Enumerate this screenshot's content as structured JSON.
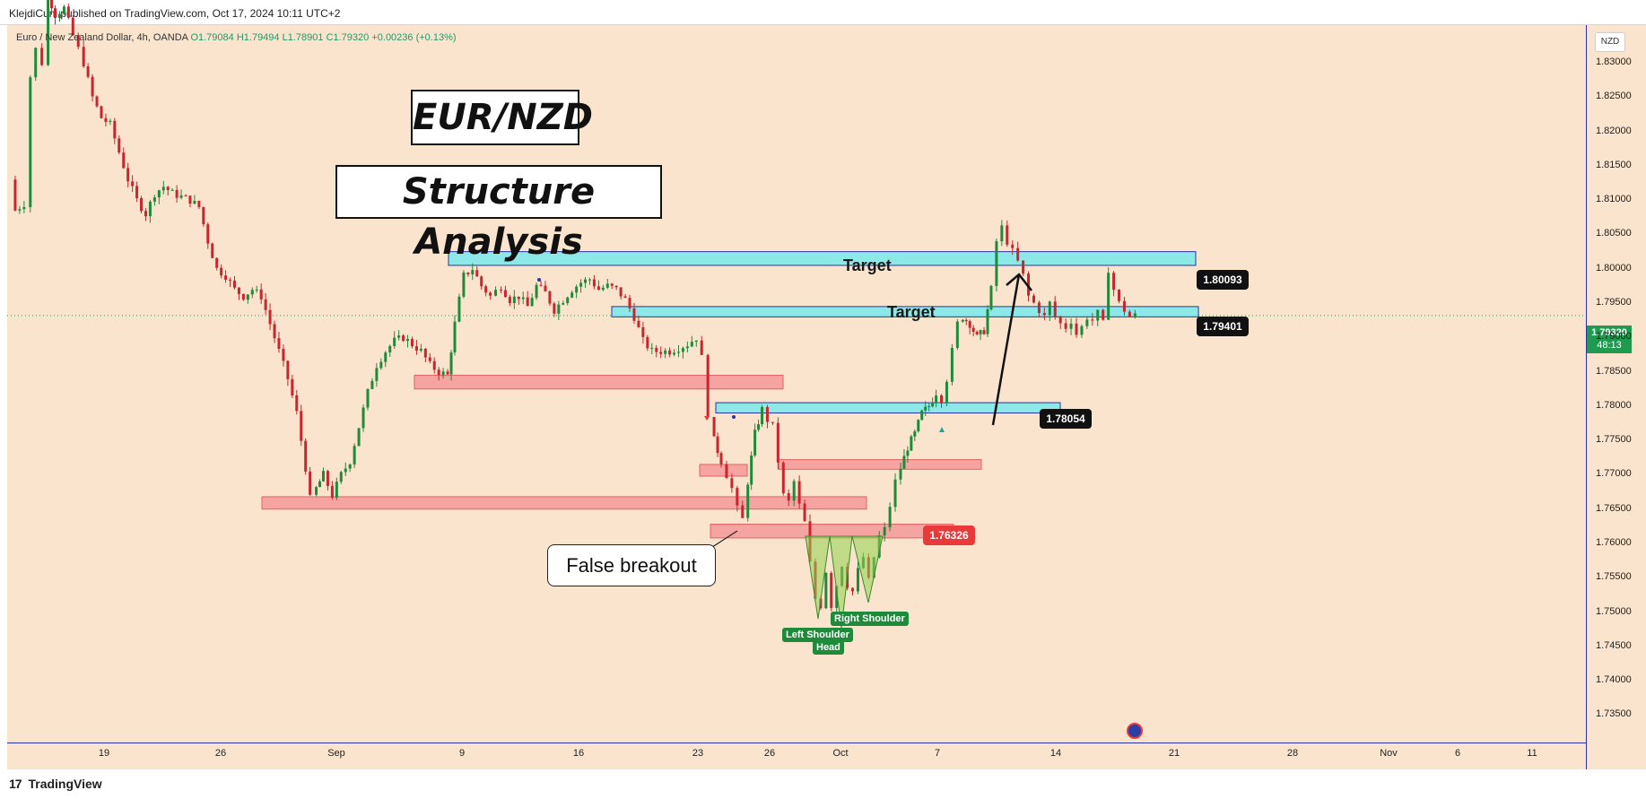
{
  "header": {
    "published": "KlejdiCuni published on TradingView.com, Oct 17, 2024 10:11 UTC+2"
  },
  "legend": {
    "symbol": "Euro / New Zealand Dollar, 4h, OANDA",
    "open": "O1.79084",
    "high": "H1.79494",
    "low": "L1.78901",
    "close": "C1.79320",
    "change": "+0.00236 (+0.13%)"
  },
  "currency": "NZD",
  "titles": {
    "pair": "EUR/NZD",
    "analysis": "Structure Analysis"
  },
  "annotations": {
    "false_breakout": "False breakout",
    "target_upper": "Target",
    "target_lower": "Target",
    "left_shoulder": "Left Shoulder",
    "head": "Head",
    "right_shoulder": "Right Shoulder"
  },
  "price_tags": {
    "upper_target": "1.80093",
    "lower_target": "1.79401",
    "support": "1.78054",
    "red": "1.76326",
    "current": "1.79320",
    "countdown": "48:13"
  },
  "footer": {
    "brand": "TradingView"
  },
  "colors": {
    "bull": "#1f8a3a",
    "bear": "#c8262d",
    "zone_cyan": "#7fe9ea",
    "zone_red": "#f59999",
    "background": "#fbe4cd"
  },
  "chart_data": {
    "type": "candlestick",
    "symbol": "Euro / New Zealand Dollar, 4h, OANDA",
    "ylim": [
      1.731,
      1.8355
    ],
    "yticks": [
      "1.83000",
      "1.82500",
      "1.82000",
      "1.81500",
      "1.81000",
      "1.80500",
      "1.80000",
      "1.79500",
      "1.79000",
      "1.78500",
      "1.78000",
      "1.77500",
      "1.77000",
      "1.76500",
      "1.76000",
      "1.75500",
      "1.75000",
      "1.74500",
      "1.74000",
      "1.73500"
    ],
    "xticks": [
      "19",
      "26",
      "Sep",
      "9",
      "16",
      "23",
      "26",
      "Oct",
      "7",
      "14",
      "21",
      "28",
      "Nov",
      "6",
      "11"
    ],
    "zones": [
      {
        "type": "target",
        "low": 1.8005,
        "high": 1.8025
      },
      {
        "type": "target",
        "low": 1.793,
        "high": 1.7945
      },
      {
        "type": "support",
        "low": 1.779,
        "high": 1.7805
      },
      {
        "type": "resistance",
        "low": 1.7825,
        "high": 1.7845
      },
      {
        "type": "resistance",
        "low": 1.7708,
        "high": 1.7722
      },
      {
        "type": "resistance",
        "low": 1.7698,
        "high": 1.7715
      },
      {
        "type": "resistance",
        "low": 1.765,
        "high": 1.7668
      },
      {
        "type": "resistance",
        "low": 1.7608,
        "high": 1.7628
      }
    ],
    "levels": [
      1.80093,
      1.79401,
      1.78054,
      1.76326,
      1.7932
    ],
    "path": [
      [
        0,
        1.813
      ],
      [
        5,
        1.8085
      ],
      [
        15,
        1.8095
      ],
      [
        22,
        1.828
      ],
      [
        28,
        1.832
      ],
      [
        35,
        1.83
      ],
      [
        42,
        1.84
      ],
      [
        50,
        1.837
      ],
      [
        60,
        1.838
      ],
      [
        70,
        1.834
      ],
      [
        82,
        1.83
      ],
      [
        92,
        1.825
      ],
      [
        102,
        1.822
      ],
      [
        112,
        1.821
      ],
      [
        122,
        1.817
      ],
      [
        132,
        1.813
      ],
      [
        142,
        1.81
      ],
      [
        152,
        1.808
      ],
      [
        162,
        1.811
      ],
      [
        172,
        1.812
      ],
      [
        182,
        1.811
      ],
      [
        192,
        1.8105
      ],
      [
        202,
        1.81
      ],
      [
        212,
        1.809
      ],
      [
        222,
        1.804
      ],
      [
        232,
        1.8
      ],
      [
        242,
        1.799
      ],
      [
        252,
        1.797
      ],
      [
        262,
        1.796
      ],
      [
        272,
        1.797
      ],
      [
        282,
        1.796
      ],
      [
        292,
        1.792
      ],
      [
        302,
        1.788
      ],
      [
        312,
        1.784
      ],
      [
        322,
        1.779
      ],
      [
        332,
        1.771
      ],
      [
        337,
        1.7665
      ],
      [
        344,
        1.768
      ],
      [
        352,
        1.77
      ],
      [
        362,
        1.767
      ],
      [
        372,
        1.77
      ],
      [
        382,
        1.772
      ],
      [
        392,
        1.777
      ],
      [
        402,
        1.782
      ],
      [
        412,
        1.786
      ],
      [
        422,
        1.788
      ],
      [
        432,
        1.7895
      ],
      [
        442,
        1.79
      ],
      [
        452,
        1.789
      ],
      [
        462,
        1.788
      ],
      [
        472,
        1.786
      ],
      [
        482,
        1.785
      ],
      [
        492,
        1.7845
      ],
      [
        500,
        1.792
      ],
      [
        510,
        1.799
      ],
      [
        520,
        1.8
      ],
      [
        530,
        1.7975
      ],
      [
        540,
        1.796
      ],
      [
        552,
        1.7975
      ],
      [
        562,
        1.7955
      ],
      [
        572,
        1.796
      ],
      [
        582,
        1.7945
      ],
      [
        592,
        1.7975
      ],
      [
        602,
        1.7965
      ],
      [
        612,
        1.794
      ],
      [
        622,
        1.7955
      ],
      [
        632,
        1.797
      ],
      [
        642,
        1.798
      ],
      [
        652,
        1.7985
      ],
      [
        662,
        1.797
      ],
      [
        672,
        1.7975
      ],
      [
        682,
        1.797
      ],
      [
        692,
        1.7955
      ],
      [
        702,
        1.793
      ],
      [
        712,
        1.7895
      ],
      [
        722,
        1.788
      ],
      [
        732,
        1.788
      ],
      [
        742,
        1.788
      ],
      [
        752,
        1.7885
      ],
      [
        762,
        1.789
      ],
      [
        772,
        1.79
      ],
      [
        778,
        1.787
      ],
      [
        785,
        1.779
      ],
      [
        792,
        1.775
      ],
      [
        800,
        1.772
      ],
      [
        806,
        1.77
      ],
      [
        812,
        1.768
      ],
      [
        818,
        1.765
      ],
      [
        824,
        1.7635
      ],
      [
        830,
        1.769
      ],
      [
        838,
        1.776
      ],
      [
        846,
        1.7795
      ],
      [
        852,
        1.778
      ],
      [
        858,
        1.777
      ],
      [
        864,
        1.772
      ],
      [
        870,
        1.767
      ],
      [
        876,
        1.766
      ],
      [
        882,
        1.769
      ],
      [
        888,
        1.7655
      ],
      [
        894,
        1.763
      ],
      [
        900,
        1.757
      ],
      [
        906,
        1.752
      ],
      [
        912,
        1.751
      ],
      [
        918,
        1.756
      ],
      [
        924,
        1.751
      ],
      [
        930,
        1.754
      ],
      [
        936,
        1.757
      ],
      [
        942,
        1.754
      ],
      [
        948,
        1.753
      ],
      [
        954,
        1.756
      ],
      [
        960,
        1.758
      ],
      [
        966,
        1.7545
      ],
      [
        972,
        1.758
      ],
      [
        978,
        1.761
      ],
      [
        984,
        1.762
      ],
      [
        990,
        1.7655
      ],
      [
        996,
        1.769
      ],
      [
        1002,
        1.771
      ],
      [
        1010,
        1.774
      ],
      [
        1018,
        1.776
      ],
      [
        1026,
        1.779
      ],
      [
        1034,
        1.78
      ],
      [
        1042,
        1.782
      ],
      [
        1048,
        1.781
      ],
      [
        1054,
        1.784
      ],
      [
        1060,
        1.788
      ],
      [
        1066,
        1.792
      ],
      [
        1072,
        1.793
      ],
      [
        1080,
        1.792
      ],
      [
        1088,
        1.79
      ],
      [
        1096,
        1.791
      ],
      [
        1104,
        1.797
      ],
      [
        1110,
        1.804
      ],
      [
        1116,
        1.806
      ],
      [
        1122,
        1.804
      ],
      [
        1128,
        1.8025
      ],
      [
        1134,
        1.801
      ],
      [
        1140,
        1.799
      ],
      [
        1146,
        1.796
      ],
      [
        1152,
        1.795
      ],
      [
        1158,
        1.794
      ],
      [
        1164,
        1.793
      ],
      [
        1170,
        1.795
      ],
      [
        1176,
        1.793
      ],
      [
        1182,
        1.792
      ],
      [
        1188,
        1.7915
      ],
      [
        1194,
        1.7925
      ],
      [
        1200,
        1.7905
      ],
      [
        1206,
        1.7915
      ],
      [
        1212,
        1.793
      ],
      [
        1218,
        1.7925
      ],
      [
        1224,
        1.7935
      ],
      [
        1230,
        1.792
      ],
      [
        1236,
        1.8
      ],
      [
        1242,
        1.797
      ],
      [
        1248,
        1.795
      ],
      [
        1254,
        1.794
      ],
      [
        1260,
        1.793
      ],
      [
        1266,
        1.7932
      ]
    ]
  }
}
